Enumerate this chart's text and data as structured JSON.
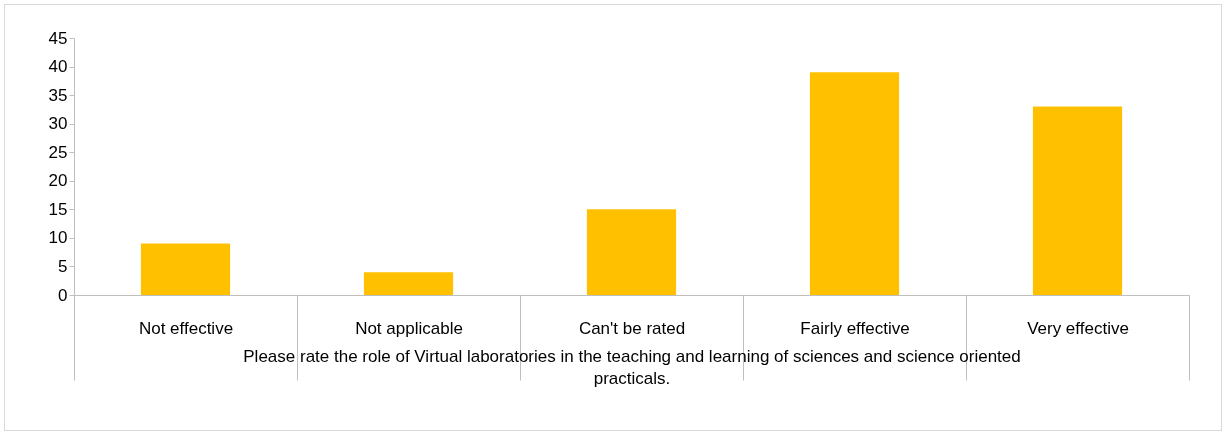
{
  "chart_data": {
    "type": "bar",
    "xlabel": "Please rate the role of Virtual laboratories in the  teaching and learning of sciences and science oriented practicals.",
    "categories": [
      "Not effective",
      "Not applicable",
      "Can't be rated",
      "Fairly effective",
      "Very effective"
    ],
    "values": [
      9,
      4,
      15,
      39,
      33
    ],
    "color": "#ffc000",
    "ylim": [
      0,
      45
    ],
    "yticks": [
      0,
      5,
      10,
      15,
      20,
      25,
      30,
      35,
      40,
      45
    ],
    "grid": false
  }
}
